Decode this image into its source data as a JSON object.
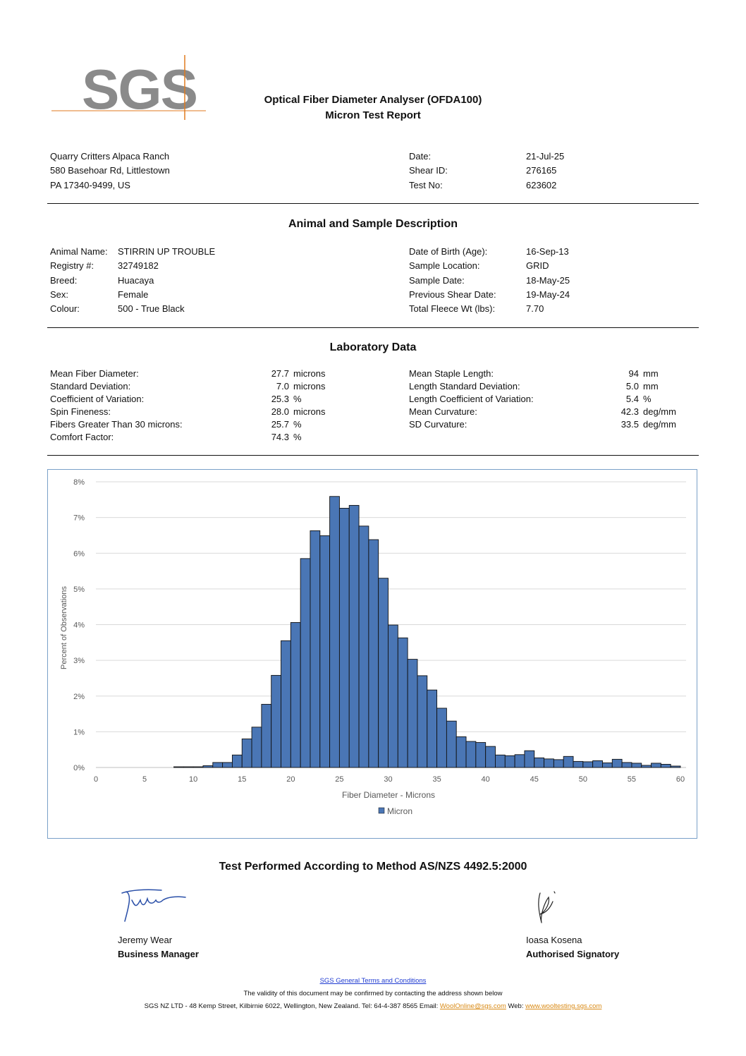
{
  "logo": {
    "text": "SGS",
    "color": "#8a8a8a",
    "accent": "#e07a1f"
  },
  "header": {
    "title_line1": "Optical Fiber Diameter Analyser (OFDA100)",
    "title_line2": "Micron Test Report"
  },
  "client": {
    "name": "Quarry Critters Alpaca Ranch",
    "address1": "580 Basehoar Rd, Littlestown",
    "address2": "PA 17340-9499, US"
  },
  "report_info": [
    {
      "label": "Date:",
      "value": "21-Jul-25"
    },
    {
      "label": "Shear ID:",
      "value": "276165"
    },
    {
      "label": "Test No:",
      "value": "623602"
    }
  ],
  "animal_section": {
    "title": "Animal and Sample Description",
    "left": [
      {
        "label": "Animal Name:",
        "value": "STIRRIN UP TROUBLE"
      },
      {
        "label": "Registry #:",
        "value": "32749182"
      },
      {
        "label": "Breed:",
        "value": "Huacaya"
      },
      {
        "label": "Sex:",
        "value": "Female"
      },
      {
        "label": "Colour:",
        "value": "500 - True Black"
      }
    ],
    "right": [
      {
        "label": "Date of Birth (Age):",
        "value": "16-Sep-13"
      },
      {
        "label": "Sample Location:",
        "value": "GRID"
      },
      {
        "label": "Sample Date:",
        "value": "18-May-25"
      },
      {
        "label": "Previous Shear Date:",
        "value": "19-May-24"
      },
      {
        "label": "Total Fleece Wt (lbs):",
        "value": "7.70"
      }
    ]
  },
  "lab_section": {
    "title": "Laboratory Data",
    "left": [
      {
        "label": "Mean Fiber Diameter:",
        "value": "27.7",
        "unit": "microns"
      },
      {
        "label": "Standard Deviation:",
        "value": "7.0",
        "unit": "microns"
      },
      {
        "label": "Coefficient of Variation:",
        "value": "25.3",
        "unit": "%"
      },
      {
        "label": "Spin Fineness:",
        "value": "28.0",
        "unit": "microns"
      },
      {
        "label": "Fibers Greater Than 30 microns:",
        "value": "25.7",
        "unit": "%"
      },
      {
        "label": "Comfort Factor:",
        "value": "74.3",
        "unit": "%"
      }
    ],
    "right": [
      {
        "label": "Mean Staple Length:",
        "value": "94",
        "unit": "mm"
      },
      {
        "label": "Length Standard Deviation:",
        "value": "5.0",
        "unit": "mm"
      },
      {
        "label": "Length Coefficient of Variation:",
        "value": "5.4",
        "unit": "%"
      },
      {
        "label": "Mean Curvature:",
        "value": "42.3",
        "unit": "deg/mm"
      },
      {
        "label": "SD Curvature:",
        "value": "33.5",
        "unit": "deg/mm"
      }
    ]
  },
  "chart_data": {
    "type": "bar",
    "title": "",
    "xlabel": "Fiber Diameter - Microns",
    "ylabel": "Percent of Observations",
    "xlim": [
      0,
      60
    ],
    "ylim": [
      0,
      8
    ],
    "x_ticks": [
      0,
      5,
      10,
      15,
      20,
      25,
      30,
      35,
      40,
      45,
      50,
      55,
      60
    ],
    "y_ticks": [
      "0%",
      "1%",
      "2%",
      "3%",
      "4%",
      "5%",
      "6%",
      "7%",
      "8%"
    ],
    "grid": true,
    "legend": "bottom",
    "bar_color": "#4a76b5",
    "series": [
      {
        "name": "Micron",
        "x": [
          9,
          10,
          11,
          12,
          13,
          14,
          15,
          16,
          17,
          18,
          19,
          20,
          21,
          22,
          23,
          24,
          25,
          26,
          27,
          28,
          29,
          30,
          31,
          32,
          33,
          34,
          35,
          36,
          37,
          38,
          39,
          40,
          41,
          42,
          43,
          44,
          45,
          46,
          47,
          48,
          49,
          50,
          51,
          52,
          53,
          54,
          55,
          56,
          57,
          58,
          59,
          60
        ],
        "values": [
          0.02,
          0.02,
          0.02,
          0.05,
          0.14,
          0.14,
          0.35,
          0.8,
          1.13,
          1.77,
          2.58,
          3.55,
          4.06,
          5.85,
          6.63,
          6.49,
          7.59,
          7.26,
          7.34,
          6.76,
          6.38,
          5.3,
          3.99,
          3.63,
          3.03,
          2.57,
          2.17,
          1.66,
          1.3,
          0.86,
          0.73,
          0.7,
          0.59,
          0.35,
          0.33,
          0.36,
          0.47,
          0.27,
          0.24,
          0.22,
          0.31,
          0.17,
          0.16,
          0.19,
          0.13,
          0.23,
          0.14,
          0.12,
          0.06,
          0.12,
          0.09,
          0.04
        ]
      }
    ]
  },
  "method": "Test Performed According to Method AS/NZS 4492.5:2000",
  "signatories": [
    {
      "name": "Jeremy Wear",
      "role": "Business Manager"
    },
    {
      "name": "Ioasa Kosena",
      "role": "Authorised Signatory"
    }
  ],
  "footer": {
    "terms_link": "SGS General Terms and Conditions",
    "validity": "The validity of this document may be confirmed by contacting the address shown below",
    "address": "SGS NZ LTD - 48 Kemp Street, Kilbirnie 6022, Wellington, New Zealand.  Tel: 64-4-387 8565 Email: ",
    "email": "WoolOnline@sgs.com",
    "web_label": " Web: ",
    "web": "www.wooltesting.sgs.com"
  }
}
